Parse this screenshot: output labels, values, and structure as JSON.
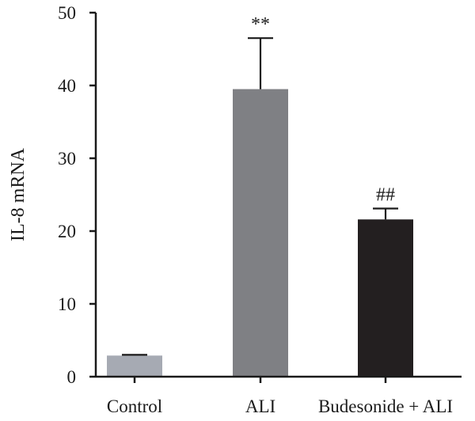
{
  "chart_data": {
    "type": "bar",
    "title": "",
    "xlabel": "",
    "ylabel": "IL-8 mRNA",
    "ylim": [
      0,
      50
    ],
    "yticks": [
      0,
      10,
      20,
      30,
      40,
      50
    ],
    "grid": false,
    "categories": [
      "Control",
      "ALI",
      "Budesonide + ALI"
    ],
    "values": [
      2.9,
      39.5,
      21.6
    ],
    "errors": [
      0.1,
      7.0,
      1.5
    ],
    "annotations": [
      "",
      "**",
      "##"
    ],
    "colors": [
      "#a6aab3",
      "#7f8084",
      "#231f20"
    ]
  }
}
